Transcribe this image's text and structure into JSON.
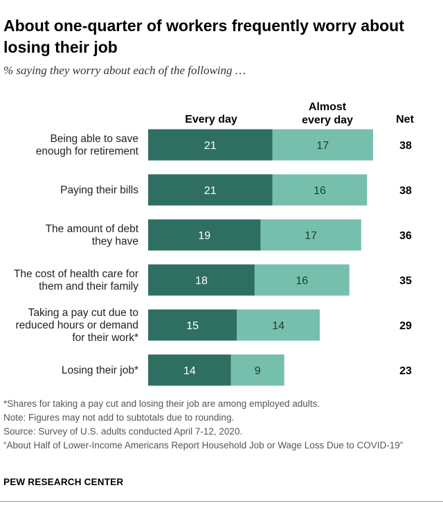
{
  "header": {
    "title": "About one-quarter of workers frequently worry about losing their job",
    "subtitle": "% saying they worry about each of the following …"
  },
  "chart_data": {
    "type": "bar",
    "orientation": "horizontal",
    "stacked": true,
    "categories": [
      [
        "Being able to save",
        "enough for retirement"
      ],
      [
        "Paying their bills"
      ],
      [
        "The amount of debt",
        "they have"
      ],
      [
        "The cost of health care for",
        "them and their family"
      ],
      [
        "Taking a pay cut due to",
        "reduced hours or demand",
        "for their work*"
      ],
      [
        "Losing their job*"
      ]
    ],
    "series": [
      {
        "name": "Every day",
        "color": "#2e6f62",
        "label_color": "#ffffff",
        "values": [
          21,
          21,
          19,
          18,
          15,
          14
        ]
      },
      {
        "name": "Almost every day",
        "color": "#76bfad",
        "label_color": "#1f3b35",
        "values": [
          17,
          16,
          17,
          16,
          14,
          9
        ]
      }
    ],
    "net": {
      "name": "Net",
      "values": [
        38,
        38,
        36,
        35,
        29,
        23
      ]
    },
    "column_headers": {
      "every_day": "Every day",
      "almost_every_day": "Almost\nevery day",
      "net": "Net"
    },
    "xlim": [
      0,
      38
    ]
  },
  "footer": {
    "notes": [
      "*Shares for taking a pay cut and losing their job are among employed adults.",
      "Note: Figures may not add to subtotals due to rounding.",
      "Source: Survey of U.S. adults conducted April 7-12, 2020.",
      "“About Half of Lower-Income Americans Report Household Job or Wage Loss Due to COVID-19”"
    ],
    "brand": "PEW RESEARCH CENTER"
  }
}
